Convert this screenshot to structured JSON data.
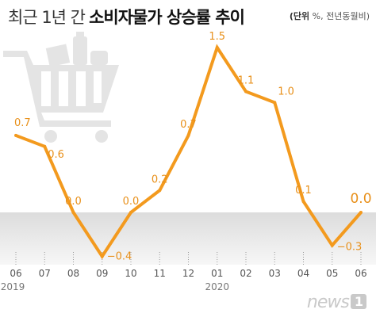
{
  "header": {
    "title_light": "최근 1년 간",
    "title_bold": "소비자물가 상승률 추이",
    "unit_label": "(단위",
    "unit_rest": " %, 전년동월비)"
  },
  "chart_data": {
    "type": "line",
    "title": "최근 1년 간 소비자물가 상승률 추이",
    "unit": "(단위 %, 전년동월비)",
    "categories": [
      "06",
      "07",
      "08",
      "09",
      "10",
      "11",
      "12",
      "01",
      "02",
      "03",
      "04",
      "05",
      "06"
    ],
    "year_labels": [
      {
        "category_index": 0,
        "label": "2019"
      },
      {
        "category_index": 7,
        "label": "2020"
      }
    ],
    "values": [
      0.7,
      0.6,
      0.0,
      -0.4,
      0.0,
      0.2,
      0.7,
      1.5,
      1.1,
      1.0,
      0.1,
      -0.3,
      0.0
    ],
    "data_labels": [
      "0.7",
      "0.6",
      "0.0",
      "−0.4",
      "0.0",
      "0.2",
      "0.7",
      "1.5",
      "1.1",
      "1.0",
      "0.1",
      "−0.3",
      "0.0"
    ],
    "ylim": [
      -0.4,
      1.5
    ],
    "negative_region_shaded": true,
    "line_color": "#f39a1e",
    "shade_color": "#e8e8e8",
    "grid": false,
    "legend": "none"
  },
  "watermark": {
    "text": "news",
    "badge": "1"
  }
}
